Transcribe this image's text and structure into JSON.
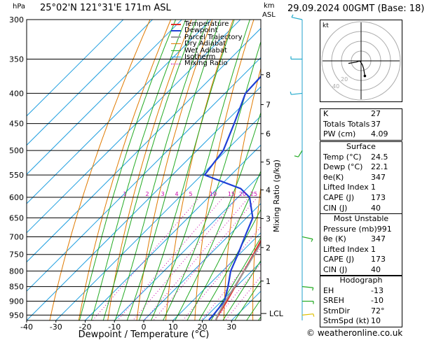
{
  "header": {
    "pressure_unit": "hPa",
    "location": "25°02'N 121°31'E 171m ASL",
    "km_label": "km",
    "asl_label": "ASL",
    "datetime": "29.09.2024 00GMT (Base: 18)"
  },
  "legend": [
    {
      "label": "Temperature",
      "color": "#e0302a",
      "style": "solid"
    },
    {
      "label": "Dewpoint",
      "color": "#1f3fd6",
      "style": "solid"
    },
    {
      "label": "Parcel Trajectory",
      "color": "#999999",
      "style": "solid"
    },
    {
      "label": "Dry Adiabat",
      "color": "#e07a00",
      "style": "solid"
    },
    {
      "label": "Wet Adiabat",
      "color": "#22aa22",
      "style": "solid"
    },
    {
      "label": "Isotherm",
      "color": "#22a0e0",
      "style": "solid"
    },
    {
      "label": "Mixing Ratio",
      "color": "#cc00aa",
      "style": "dotted"
    }
  ],
  "axes": {
    "xlabel": "Dewpoint / Temperature (°C)",
    "mixing_ratio_label": "Mixing Ratio (g/kg)",
    "lcl_label": "LCL",
    "x_ticks": [
      "-40",
      "-30",
      "-20",
      "-10",
      "0",
      "10",
      "20",
      "30"
    ],
    "pressure_ticks": [
      "300",
      "350",
      "400",
      "450",
      "500",
      "550",
      "600",
      "650",
      "700",
      "750",
      "800",
      "850",
      "900",
      "950"
    ],
    "km_ticks": [
      "8",
      "7",
      "6",
      "5",
      "4",
      "3",
      "2",
      "1"
    ],
    "mixing_ratio_ticks": [
      "1",
      "2",
      "3",
      "4",
      "5",
      "10",
      "15",
      "20",
      "25"
    ]
  },
  "chart_data": {
    "type": "line",
    "title": "25°02'N 121°31'E 171m ASL",
    "xlabel": "Dewpoint / Temperature (°C)",
    "ylabel": "hPa",
    "xlim": [
      -40,
      40
    ],
    "ylim": [
      970,
      300
    ],
    "y_scale": "log",
    "grid": true,
    "legend_position": "top-left",
    "series": [
      {
        "name": "Temperature",
        "color": "#e0302a",
        "points": [
          [
            968,
            24.5
          ],
          [
            950,
            23.6
          ],
          [
            900,
            21.8
          ],
          [
            850,
            19.6
          ],
          [
            800,
            17.4
          ],
          [
            750,
            14.9
          ],
          [
            700,
            12.1
          ],
          [
            650,
            9.3
          ],
          [
            600,
            6.6
          ],
          [
            550,
            3.2
          ],
          [
            500,
            -0.9
          ],
          [
            450,
            -5.7
          ],
          [
            400,
            -11.8
          ],
          [
            350,
            -19.1
          ],
          [
            320,
            -24.5
          ],
          [
            300,
            -28.0
          ]
        ]
      },
      {
        "name": "Dewpoint",
        "color": "#1f3fd6",
        "points": [
          [
            968,
            22.1
          ],
          [
            950,
            21.9
          ],
          [
            900,
            21.0
          ],
          [
            850,
            17.2
          ],
          [
            800,
            12.8
          ],
          [
            750,
            9.6
          ],
          [
            700,
            5.9
          ],
          [
            650,
            2.1
          ],
          [
            600,
            -6.0
          ],
          [
            580,
            -12.0
          ],
          [
            550,
            -29.0
          ],
          [
            500,
            -31.0
          ],
          [
            450,
            -36.5
          ],
          [
            400,
            -43.0
          ],
          [
            350,
            -44.0
          ],
          [
            320,
            -49.0
          ],
          [
            300,
            -53.0
          ]
        ]
      },
      {
        "name": "Parcel Trajectory",
        "color": "#999999",
        "points": [
          [
            968,
            24.5
          ],
          [
            950,
            23.4
          ],
          [
            900,
            21.3
          ],
          [
            850,
            19.4
          ],
          [
            800,
            17.5
          ],
          [
            750,
            15.2
          ],
          [
            700,
            12.8
          ],
          [
            650,
            10.2
          ],
          [
            600,
            7.4
          ],
          [
            550,
            4.3
          ],
          [
            500,
            0.8
          ],
          [
            450,
            -3.5
          ],
          [
            400,
            -8.7
          ],
          [
            370,
            -12.3
          ]
        ]
      }
    ],
    "mixing_ratios_gkg": [
      1,
      2,
      3,
      4,
      5,
      10,
      15,
      20,
      25
    ]
  },
  "hodograph": {
    "label": "kt",
    "ring_labels": [
      "20",
      "40"
    ],
    "points": [
      [
        -10,
        -2
      ],
      [
        -4,
        -1
      ],
      [
        -1,
        0
      ],
      [
        1,
        -3
      ],
      [
        2,
        -6
      ],
      [
        3,
        -12
      ]
    ]
  },
  "wind_barbs": [
    {
      "p": 950,
      "dir": 80,
      "spd": 10,
      "color": "#e0c000"
    },
    {
      "p": 900,
      "dir": 90,
      "spd": 10,
      "color": "#22aa22"
    },
    {
      "p": 850,
      "dir": 100,
      "spd": 10,
      "color": "#22aa22"
    },
    {
      "p": 700,
      "dir": 110,
      "spd": 5,
      "color": "#22aa22"
    },
    {
      "p": 500,
      "dir": 200,
      "spd": 10,
      "color": "#22aa22"
    },
    {
      "p": 400,
      "dir": 260,
      "spd": 10,
      "color": "#22aacc"
    },
    {
      "p": 350,
      "dir": 270,
      "spd": 10,
      "color": "#22aacc"
    },
    {
      "p": 300,
      "dir": 290,
      "spd": 15,
      "color": "#22aacc"
    }
  ],
  "indices": {
    "rows": [
      {
        "k": "K",
        "v": "27"
      },
      {
        "k": "Totals Totals",
        "v": "37"
      },
      {
        "k": "PW (cm)",
        "v": "4.09"
      }
    ]
  },
  "surface": {
    "title": "Surface",
    "rows": [
      {
        "k": "Temp (°C)",
        "v": "24.5"
      },
      {
        "k": "Dewp (°C)",
        "v": "22.1"
      },
      {
        "k": "θe(K)",
        "v": "347"
      },
      {
        "k": "Lifted Index",
        "v": "1"
      },
      {
        "k": "CAPE (J)",
        "v": "173"
      },
      {
        "k": "CIN (J)",
        "v": "40"
      }
    ]
  },
  "most_unstable": {
    "title": "Most Unstable",
    "rows": [
      {
        "k": "Pressure (mb)",
        "v": "991"
      },
      {
        "k": "θe (K)",
        "v": "347"
      },
      {
        "k": "Lifted Index",
        "v": "1"
      },
      {
        "k": "CAPE (J)",
        "v": "173"
      },
      {
        "k": "CIN (J)",
        "v": "40"
      }
    ]
  },
  "hodograph_table": {
    "title": "Hodograph",
    "rows": [
      {
        "k": "EH",
        "v": "-13"
      },
      {
        "k": "SREH",
        "v": "-10"
      },
      {
        "k": "StmDir",
        "v": "72°"
      },
      {
        "k": "StmSpd (kt)",
        "v": "10"
      }
    ]
  },
  "footer": {
    "copyright": "© weatheronline.co.uk"
  }
}
